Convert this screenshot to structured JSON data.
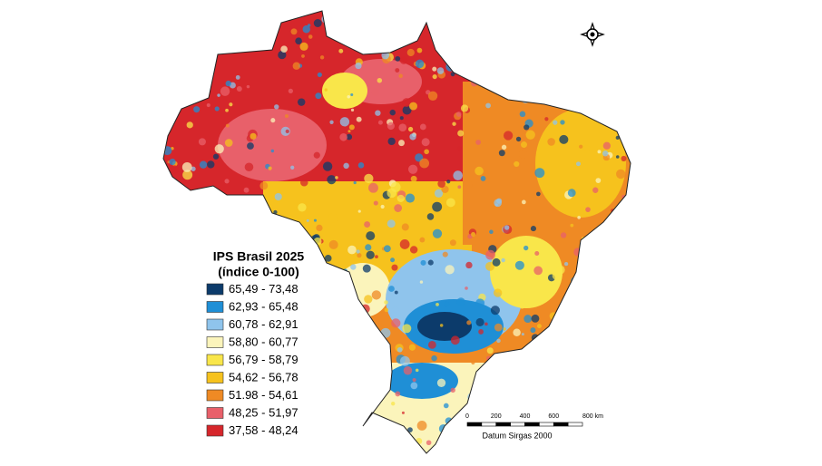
{
  "legend": {
    "title": "IPS Brasil 2025",
    "subtitle": "(índice 0-100)",
    "items": [
      {
        "label": "65,49 - 73,48",
        "color": "#0c3b6b"
      },
      {
        "label": "62,93 - 65,48",
        "color": "#1f8fd6"
      },
      {
        "label": "60,78 - 62,91",
        "color": "#8fc4ec"
      },
      {
        "label": "58,80 - 60,77",
        "color": "#fbf4bb"
      },
      {
        "label": "56,79 - 58,79",
        "color": "#f9e64a"
      },
      {
        "label": "54,62 - 56,78",
        "color": "#f6c21d"
      },
      {
        "label": "51.98 - 54,61",
        "color": "#ef8a24"
      },
      {
        "label": "48,25 - 51,97",
        "color": "#e8606a"
      },
      {
        "label": "37,58 - 48,24",
        "color": "#d6262b"
      }
    ]
  },
  "scale_bar": {
    "ticks": [
      "0",
      "200",
      "400",
      "600",
      "800 km"
    ],
    "caption": "Datum Sirgas 2000"
  }
}
